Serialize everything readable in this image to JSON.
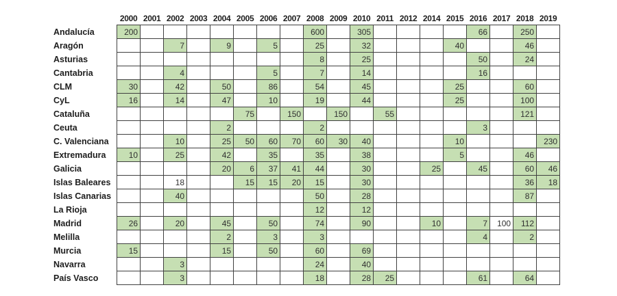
{
  "chart_data": {
    "type": "table",
    "title": "",
    "columns": [
      "2000",
      "2001",
      "2002",
      "2003",
      "2004",
      "2005",
      "2006",
      "2007",
      "2008",
      "2009",
      "2010",
      "2011",
      "2012",
      "2014",
      "2015",
      "2016",
      "2017",
      "2018",
      "2019"
    ],
    "note_layout": "valued cells have green fill unless fill is none",
    "rows": [
      {
        "label": "Andalucía",
        "cells": [
          {
            "y": "2000",
            "v": "200"
          },
          {
            "y": "2008",
            "v": "600"
          },
          {
            "y": "2010",
            "v": "305"
          },
          {
            "y": "2016",
            "v": "66"
          },
          {
            "y": "2018",
            "v": "250"
          }
        ]
      },
      {
        "label": "Aragón",
        "cells": [
          {
            "y": "2002",
            "v": "7"
          },
          {
            "y": "2004",
            "v": "9"
          },
          {
            "y": "2006",
            "v": "5"
          },
          {
            "y": "2008",
            "v": "25"
          },
          {
            "y": "2010",
            "v": "32"
          },
          {
            "y": "2015",
            "v": "40"
          },
          {
            "y": "2018",
            "v": "46"
          }
        ]
      },
      {
        "label": "Asturias",
        "cells": [
          {
            "y": "2008",
            "v": "8"
          },
          {
            "y": "2010",
            "v": "25"
          },
          {
            "y": "2016",
            "v": "50"
          },
          {
            "y": "2018",
            "v": "24"
          }
        ]
      },
      {
        "label": "Cantabria",
        "cells": [
          {
            "y": "2002",
            "v": "4"
          },
          {
            "y": "2006",
            "v": "5"
          },
          {
            "y": "2008",
            "v": "7"
          },
          {
            "y": "2010",
            "v": "14"
          },
          {
            "y": "2016",
            "v": "16"
          }
        ]
      },
      {
        "label": "CLM",
        "cells": [
          {
            "y": "2000",
            "v": "30"
          },
          {
            "y": "2002",
            "v": "42"
          },
          {
            "y": "2004",
            "v": "50"
          },
          {
            "y": "2006",
            "v": "86"
          },
          {
            "y": "2008",
            "v": "54"
          },
          {
            "y": "2010",
            "v": "45"
          },
          {
            "y": "2015",
            "v": "25"
          },
          {
            "y": "2018",
            "v": "60"
          }
        ]
      },
      {
        "label": "CyL",
        "cells": [
          {
            "y": "2000",
            "v": "16"
          },
          {
            "y": "2002",
            "v": "14"
          },
          {
            "y": "2004",
            "v": "47"
          },
          {
            "y": "2006",
            "v": "10"
          },
          {
            "y": "2008",
            "v": "19"
          },
          {
            "y": "2010",
            "v": "44"
          },
          {
            "y": "2015",
            "v": "25"
          },
          {
            "y": "2018",
            "v": "100"
          }
        ]
      },
      {
        "label": "Cataluña",
        "cells": [
          {
            "y": "2005",
            "v": "75"
          },
          {
            "y": "2007",
            "v": "150"
          },
          {
            "y": "2009",
            "v": "150"
          },
          {
            "y": "2011",
            "v": "55"
          },
          {
            "y": "2018",
            "v": "121"
          }
        ]
      },
      {
        "label": "Ceuta",
        "cells": [
          {
            "y": "2004",
            "v": "2"
          },
          {
            "y": "2008",
            "v": "2"
          },
          {
            "y": "2016",
            "v": "3"
          }
        ]
      },
      {
        "label": "C. Valenciana",
        "cells": [
          {
            "y": "2002",
            "v": "10"
          },
          {
            "y": "2004",
            "v": "25"
          },
          {
            "y": "2005",
            "v": "50"
          },
          {
            "y": "2006",
            "v": "60"
          },
          {
            "y": "2007",
            "v": "70"
          },
          {
            "y": "2008",
            "v": "60"
          },
          {
            "y": "2009",
            "v": "30"
          },
          {
            "y": "2010",
            "v": "40"
          },
          {
            "y": "2015",
            "v": "10"
          },
          {
            "y": "2019",
            "v": "230"
          }
        ]
      },
      {
        "label": "Extremadura",
        "cells": [
          {
            "y": "2000",
            "v": "10"
          },
          {
            "y": "2002",
            "v": "25"
          },
          {
            "y": "2004",
            "v": "42"
          },
          {
            "y": "2006",
            "v": "35"
          },
          {
            "y": "2008",
            "v": "35"
          },
          {
            "y": "2010",
            "v": "38"
          },
          {
            "y": "2015",
            "v": "5"
          },
          {
            "y": "2018",
            "v": "46"
          }
        ]
      },
      {
        "label": "Galicia",
        "cells": [
          {
            "y": "2004",
            "v": "20"
          },
          {
            "y": "2005",
            "v": "6"
          },
          {
            "y": "2006",
            "v": "37"
          },
          {
            "y": "2007",
            "v": "41"
          },
          {
            "y": "2008",
            "v": "44"
          },
          {
            "y": "2010",
            "v": "30"
          },
          {
            "y": "2014",
            "v": "25"
          },
          {
            "y": "2016",
            "v": "45"
          },
          {
            "y": "2018",
            "v": "60"
          },
          {
            "y": "2019",
            "v": "46"
          }
        ]
      },
      {
        "label": "Islas Baleares",
        "cells": [
          {
            "y": "2002",
            "v": "18",
            "fill": "none"
          },
          {
            "y": "2005",
            "v": "15"
          },
          {
            "y": "2006",
            "v": "15"
          },
          {
            "y": "2007",
            "v": "20"
          },
          {
            "y": "2008",
            "v": "15"
          },
          {
            "y": "2010",
            "v": "30"
          },
          {
            "y": "2018",
            "v": "36"
          },
          {
            "y": "2019",
            "v": "18"
          }
        ]
      },
      {
        "label": "Islas Canarias",
        "cells": [
          {
            "y": "2002",
            "v": "40"
          },
          {
            "y": "2008",
            "v": "50"
          },
          {
            "y": "2010",
            "v": "28"
          },
          {
            "y": "2018",
            "v": "87"
          }
        ]
      },
      {
        "label": "La Rioja",
        "cells": [
          {
            "y": "2008",
            "v": "12"
          },
          {
            "y": "2010",
            "v": "12"
          }
        ]
      },
      {
        "label": "Madrid",
        "cells": [
          {
            "y": "2000",
            "v": "26"
          },
          {
            "y": "2002",
            "v": "20"
          },
          {
            "y": "2004",
            "v": "45"
          },
          {
            "y": "2006",
            "v": "50"
          },
          {
            "y": "2008",
            "v": "74"
          },
          {
            "y": "2010",
            "v": "90"
          },
          {
            "y": "2014",
            "v": "10"
          },
          {
            "y": "2016",
            "v": "7"
          },
          {
            "y": "2017",
            "v": "100",
            "fill": "none"
          },
          {
            "y": "2018",
            "v": "112"
          }
        ]
      },
      {
        "label": "Melilla",
        "cells": [
          {
            "y": "2004",
            "v": "2"
          },
          {
            "y": "2006",
            "v": "3"
          },
          {
            "y": "2008",
            "v": "3"
          },
          {
            "y": "2016",
            "v": "4"
          },
          {
            "y": "2018",
            "v": "2"
          }
        ]
      },
      {
        "label": "Murcia",
        "cells": [
          {
            "y": "2000",
            "v": "15"
          },
          {
            "y": "2004",
            "v": "15"
          },
          {
            "y": "2006",
            "v": "50"
          },
          {
            "y": "2008",
            "v": "60"
          },
          {
            "y": "2010",
            "v": "69"
          }
        ]
      },
      {
        "label": "Navarra",
        "cells": [
          {
            "y": "2002",
            "v": "3"
          },
          {
            "y": "2008",
            "v": "24"
          },
          {
            "y": "2010",
            "v": "40"
          }
        ]
      },
      {
        "label": "País Vasco",
        "cells": [
          {
            "y": "2002",
            "v": "3"
          },
          {
            "y": "2008",
            "v": "18"
          },
          {
            "y": "2010",
            "v": "28"
          },
          {
            "y": "2011",
            "v": "25"
          },
          {
            "y": "2016",
            "v": "61"
          },
          {
            "y": "2018",
            "v": "64"
          }
        ]
      }
    ],
    "colors": {
      "cell_fill_green": "#c6dfb3",
      "cell_fill_plain": "#ffffff",
      "grid_border": "#3f3f3f",
      "text": "#1d1d1d"
    }
  }
}
